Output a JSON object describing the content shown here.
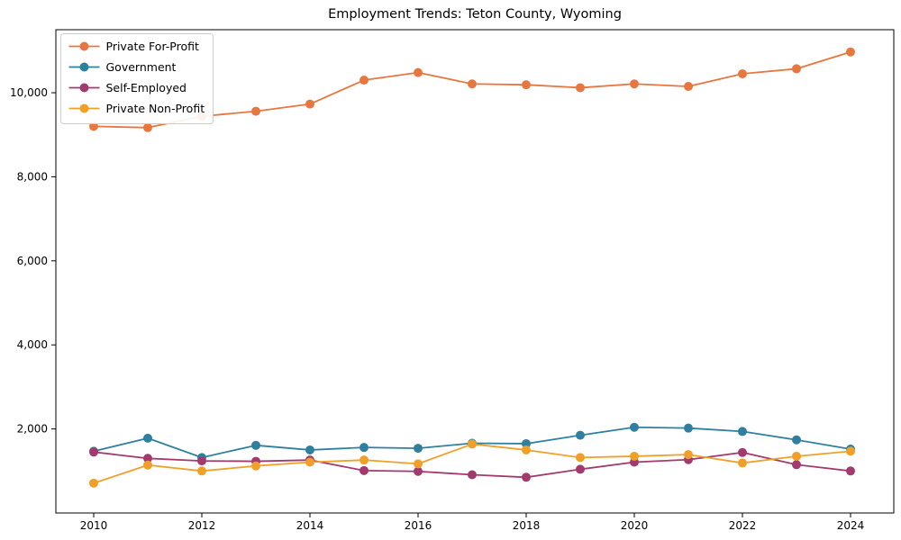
{
  "figure": {
    "title": "Employment Trends: Teton County, Wyoming"
  },
  "chart_data": {
    "type": "line",
    "title": "Employment Trends: Teton County, Wyoming",
    "xlabel": "",
    "ylabel": "",
    "x": [
      2010,
      2011,
      2012,
      2013,
      2014,
      2015,
      2016,
      2017,
      2018,
      2019,
      2020,
      2021,
      2022,
      2023,
      2024
    ],
    "series": [
      {
        "name": "Private For-Profit",
        "color": "#e8763f",
        "values": [
          9200,
          9170,
          9440,
          9560,
          9730,
          10300,
          10480,
          10210,
          10190,
          10120,
          10210,
          10150,
          10450,
          10570,
          10970
        ]
      },
      {
        "name": "Government",
        "color": "#2f7f9f",
        "values": [
          1470,
          1780,
          1320,
          1610,
          1500,
          1560,
          1540,
          1660,
          1650,
          1850,
          2040,
          2020,
          1940,
          1740,
          1520
        ]
      },
      {
        "name": "Self-Employed",
        "color": "#a33a6e",
        "values": [
          1450,
          1300,
          1240,
          1230,
          1260,
          1010,
          990,
          910,
          850,
          1040,
          1210,
          1270,
          1440,
          1150,
          1000
        ]
      },
      {
        "name": "Private Non-Profit",
        "color": "#f0a028",
        "values": [
          710,
          1140,
          1000,
          1120,
          1210,
          1260,
          1170,
          1640,
          1500,
          1320,
          1350,
          1390,
          1190,
          1350,
          1470
        ]
      }
    ],
    "xlim": [
      2009.3,
      2024.8
    ],
    "ylim": [
      0,
      11500
    ],
    "xticks": [
      2010,
      2012,
      2014,
      2016,
      2018,
      2020,
      2022,
      2024
    ],
    "yticks": [
      2000,
      4000,
      6000,
      8000,
      10000
    ],
    "ytick_labels": [
      "2,000",
      "4,000",
      "6,000",
      "8,000",
      "10,000"
    ],
    "grid": false,
    "legend_position": "upper left",
    "axis_color": "#000000",
    "tick_label_color": "#000000",
    "legend_border_color": "#cccccc",
    "background_color": "#ffffff"
  }
}
